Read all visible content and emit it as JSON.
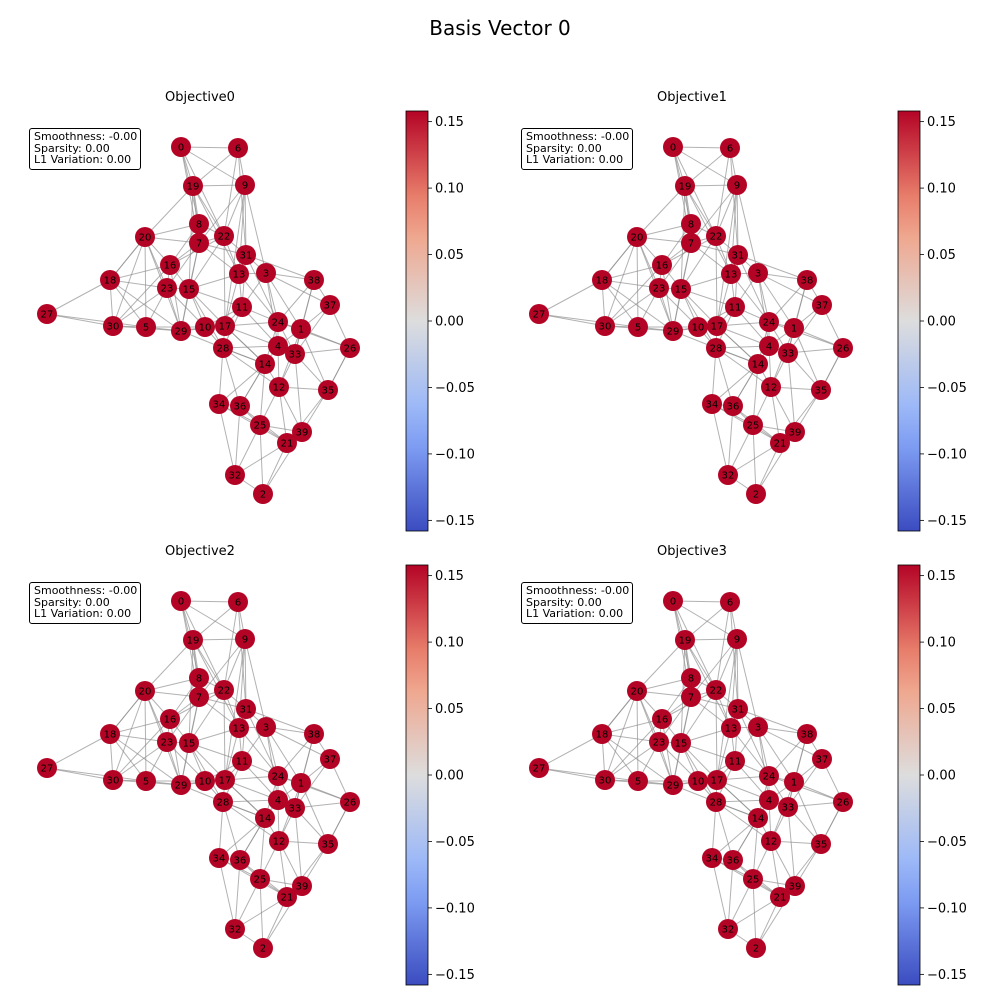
{
  "figure": {
    "title": "Basis Vector 0"
  },
  "chart_data": {
    "type": "graph",
    "node_color": "#b40426",
    "edge_color": "#888888",
    "colormap": "coolwarm",
    "colorbar": {
      "vmin": -0.158,
      "vmax": 0.158,
      "ticks": [
        -0.15,
        -0.1,
        -0.05,
        0.0,
        0.05,
        0.1,
        0.15
      ],
      "tick_labels": [
        "−0.15",
        "−0.10",
        "−0.05",
        "0.00",
        "0.05",
        "0.10",
        "0.15"
      ]
    },
    "panels": [
      {
        "title": "Objective0",
        "stats": [
          "Smoothness: -0.00",
          "Sparsity: 0.00",
          "L1 Variation: 0.00"
        ],
        "node_values_all": 0.158
      },
      {
        "title": "Objective1",
        "stats": [
          "Smoothness: -0.00",
          "Sparsity: 0.00",
          "L1 Variation: 0.00"
        ],
        "node_values_all": 0.158
      },
      {
        "title": "Objective2",
        "stats": [
          "Smoothness: -0.00",
          "Sparsity: 0.00",
          "L1 Variation: 0.00"
        ],
        "node_values_all": 0.158
      },
      {
        "title": "Objective3",
        "stats": [
          "Smoothness: -0.00",
          "Sparsity: 0.00",
          "L1 Variation: 0.00"
        ],
        "node_values_all": 0.158
      }
    ],
    "node_labels": [
      "0",
      "1",
      "2",
      "3",
      "4",
      "5",
      "6",
      "7",
      "8",
      "9",
      "10",
      "11",
      "12",
      "13",
      "14",
      "15",
      "16",
      "17",
      "18",
      "19",
      "20",
      "21",
      "22",
      "23",
      "24",
      "25",
      "26",
      "27",
      "28",
      "29",
      "30",
      "31",
      "32",
      "33",
      "34",
      "35",
      "36",
      "37",
      "38",
      "39"
    ]
  }
}
